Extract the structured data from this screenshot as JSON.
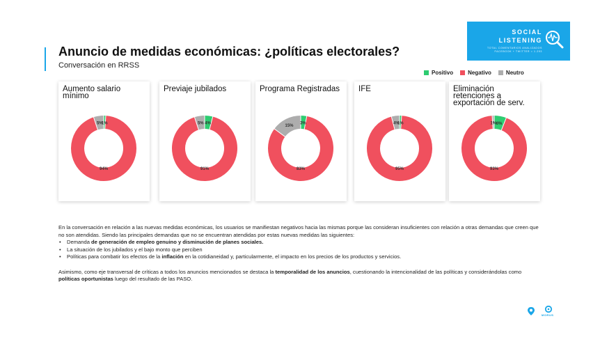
{
  "badge": {
    "title": "SOCIAL\nLISTENING",
    "subtitle": "TOTAL COMENTARIOS ANALIZADOS\nFACEBOOK + TWITTER = 1.293"
  },
  "header": {
    "title": "Anuncio de medidas económicas: ¿políticas electorales?",
    "subtitle": "Conversación en RRSS"
  },
  "legend": [
    {
      "label": "Positivo",
      "color": "#2ecc71"
    },
    {
      "label": "Negativo",
      "color": "#f0505e"
    },
    {
      "label": "Neutro",
      "color": "#adadad"
    }
  ],
  "chart_data": [
    {
      "type": "pie",
      "title": "Aumento salario mínimo",
      "series": [
        {
          "name": "Positivo",
          "value": 1
        },
        {
          "name": "Negativo",
          "value": 94
        },
        {
          "name": "Neutro",
          "value": 5
        }
      ]
    },
    {
      "type": "pie",
      "title": "Previaje jubilados",
      "series": [
        {
          "name": "Positivo",
          "value": 4
        },
        {
          "name": "Negativo",
          "value": 91
        },
        {
          "name": "Neutro",
          "value": 5
        }
      ]
    },
    {
      "type": "pie",
      "title": "Programa Registradas",
      "series": [
        {
          "name": "Positivo",
          "value": 3
        },
        {
          "name": "Negativo",
          "value": 83
        },
        {
          "name": "Neutro",
          "value": 15
        }
      ]
    },
    {
      "type": "pie",
      "title": "IFE",
      "series": [
        {
          "name": "Positivo",
          "value": 1
        },
        {
          "name": "Negativo",
          "value": 95
        },
        {
          "name": "Neutro",
          "value": 4
        }
      ]
    },
    {
      "type": "pie",
      "title": "Eliminación retenciones a exportación de serv.",
      "series": [
        {
          "name": "Positivo",
          "value": 6
        },
        {
          "name": "Negativo",
          "value": 93
        },
        {
          "name": "Neutro",
          "value": 1
        }
      ]
    }
  ],
  "text": {
    "p1": "En la  conversación en relación a las nuevas medidas económicas, los usuarios se manifiestan negativos hacia las mismas porque las consideran insuficientes con relación a otras demandas que creen que no son atendidas. Siendo las principales demandas que no se encuentran atendidas por estas nuevas medidas las siguientes:",
    "b1_pre": "Demanda ",
    "b1_bold": "de generación de empleo genuino y disminución de planes sociales.",
    "b2": "La situación de los jubilados y el bajo monto que perciben",
    "b3_pre": "Políticas para combatir los efectos de la ",
    "b3_bold": "inflación",
    "b3_post": " en la cotidianeidad y, particularmente, el impacto en los precios de los productos y servicios.",
    "p2_pre": "Asimismo, como  eje transversal de críticas a todos los anuncios mencionados se destaca la ",
    "p2_bold1": "temporalidad de los anuncios",
    "p2_mid": ", cuestionando la intencionalidad de las políticas y considerándolas como ",
    "p2_bold2": "políticas oportunistas",
    "p2_post": " luego del resultado de las PASO."
  },
  "footer": {
    "logo_text": "MORUS"
  }
}
